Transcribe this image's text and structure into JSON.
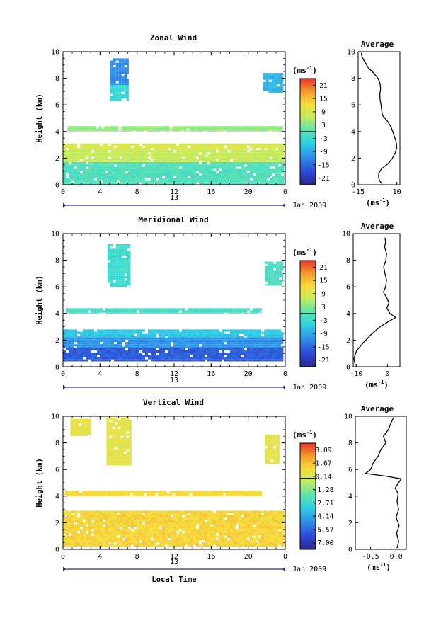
{
  "chart_data": [
    {
      "type": "heatmap",
      "title": "Zonal Wind",
      "ylabel": "Height (km)",
      "xticks": [
        "0",
        "4",
        "8",
        "12",
        "16",
        "20",
        "0"
      ],
      "yticks": [
        "0",
        "2",
        "4",
        "6",
        "8",
        "10"
      ],
      "xlim": [
        0,
        24
      ],
      "ylim": [
        0,
        10
      ],
      "date_label": "13",
      "month_label": "Jan 2009",
      "colorbar": {
        "unit_base": "(ms",
        "unit_exp": "-1",
        "unit_close": ")",
        "ticks": [
          "21",
          "15",
          "9",
          "3",
          "-3",
          "-9",
          "-15",
          "-21"
        ],
        "range": [
          -24,
          24
        ],
        "zero_line": 0
      },
      "fields": [
        {
          "x": [
            5.1,
            7.1
          ],
          "y": [
            7.5,
            9.5
          ],
          "value": -12
        },
        {
          "x": [
            5.1,
            7.1
          ],
          "y": [
            6.3,
            7.5
          ],
          "value": -4
        },
        {
          "x": [
            21.6,
            23.8
          ],
          "y": [
            6.9,
            8.4
          ],
          "value": -8
        },
        {
          "x": [
            0.5,
            23.8
          ],
          "y": [
            4.0,
            4.4
          ],
          "value": 4
        },
        {
          "x": [
            0,
            23.9
          ],
          "y": [
            2.6,
            3.1
          ],
          "value": 9
        },
        {
          "x": [
            0,
            23.9
          ],
          "y": [
            1.7,
            2.6
          ],
          "value": 7
        },
        {
          "x": [
            0,
            23.9
          ],
          "y": [
            0,
            1.7
          ],
          "value": -1
        }
      ],
      "average": {
        "title": "Average",
        "xlabel_base": "(ms",
        "xlabel_exp": "-1",
        "xlabel_close": ")",
        "xticks": [
          "-15",
          "10"
        ],
        "xlim": [
          -15,
          12
        ],
        "ylim": [
          0,
          10
        ],
        "yticks": [
          "0",
          "2",
          "4",
          "6",
          "8",
          "10"
        ],
        "profile": [
          [
            0.3,
            0.1
          ],
          [
            -1.2,
            0.3
          ],
          [
            -1.8,
            0.6
          ],
          [
            -1.6,
            0.9
          ],
          [
            0.2,
            1.2
          ],
          [
            4.5,
            1.6
          ],
          [
            7.2,
            2.0
          ],
          [
            9.0,
            2.4
          ],
          [
            10.0,
            2.8
          ],
          [
            9.6,
            3.2
          ],
          [
            8.5,
            3.6
          ],
          [
            7.4,
            4.0
          ],
          [
            6.0,
            4.4
          ],
          [
            3.8,
            4.8
          ],
          [
            0.8,
            5.2
          ],
          [
            0.2,
            5.6
          ],
          [
            -0.2,
            6.0
          ],
          [
            -0.8,
            6.4
          ],
          [
            -1.0,
            6.8
          ],
          [
            -0.5,
            7.2
          ],
          [
            -0.8,
            7.6
          ],
          [
            -2.2,
            8.0
          ],
          [
            -5.0,
            8.4
          ],
          [
            -8.5,
            8.8
          ],
          [
            -10.5,
            9.2
          ],
          [
            -12.5,
            9.6
          ],
          [
            -13.0,
            9.9
          ]
        ]
      }
    },
    {
      "type": "heatmap",
      "title": "Meridional Wind",
      "ylabel": "Height (km)",
      "xticks": [
        "0",
        "4",
        "8",
        "12",
        "16",
        "20",
        "0"
      ],
      "yticks": [
        "0",
        "2",
        "4",
        "6",
        "8",
        "10"
      ],
      "xlim": [
        0,
        24
      ],
      "ylim": [
        0,
        10
      ],
      "date_label": "13",
      "month_label": "Jan 2009",
      "colorbar": {
        "unit_base": "(ms",
        "unit_exp": "-1",
        "unit_close": ")",
        "ticks": [
          "21",
          "15",
          "9",
          "3",
          "-3",
          "-9",
          "-15",
          "-21"
        ],
        "range": [
          -24,
          24
        ],
        "zero_line": 0
      },
      "fields": [
        {
          "x": [
            4.8,
            7.3
          ],
          "y": [
            6.0,
            9.2
          ],
          "value": -3
        },
        {
          "x": [
            21.8,
            23.8
          ],
          "y": [
            6.1,
            7.9
          ],
          "value": -2
        },
        {
          "x": [
            0.3,
            21.5
          ],
          "y": [
            4.0,
            4.4
          ],
          "value": -2
        },
        {
          "x": [
            0,
            23.8
          ],
          "y": [
            2.2,
            2.8
          ],
          "value": -6
        },
        {
          "x": [
            0,
            23.8
          ],
          "y": [
            1.4,
            2.2
          ],
          "value": -11
        },
        {
          "x": [
            0,
            23.8
          ],
          "y": [
            0.4,
            1.4
          ],
          "value": -16
        }
      ],
      "average": {
        "title": "Average",
        "xlabel_base": "(ms",
        "xlabel_exp": "-1",
        "xlabel_close": ")",
        "xticks": [
          "-10",
          "0"
        ],
        "xlim": [
          -11,
          4
        ],
        "ylim": [
          0,
          10
        ],
        "yticks": [
          "0",
          "2",
          "4",
          "6",
          "8",
          "10"
        ],
        "profile": [
          [
            -10.3,
            0.1
          ],
          [
            -10.8,
            0.6
          ],
          [
            -9.9,
            1.2
          ],
          [
            -7.8,
            1.8
          ],
          [
            -5.3,
            2.4
          ],
          [
            -2.4,
            3.0
          ],
          [
            0.4,
            3.4
          ],
          [
            2.6,
            3.7
          ],
          [
            0.8,
            4.0
          ],
          [
            -0.2,
            4.4
          ],
          [
            0.5,
            4.8
          ],
          [
            -0.3,
            5.2
          ],
          [
            -1.3,
            5.6
          ],
          [
            -0.6,
            6.0
          ],
          [
            -0.3,
            6.5
          ],
          [
            -0.8,
            7.0
          ],
          [
            -1.2,
            7.5
          ],
          [
            -0.5,
            8.0
          ],
          [
            -0.3,
            8.5
          ],
          [
            -0.9,
            9.0
          ],
          [
            -0.6,
            9.4
          ],
          [
            -0.8,
            9.7
          ]
        ]
      }
    },
    {
      "type": "heatmap",
      "title": "Vertical Wind",
      "ylabel": "Height (km)",
      "xlabel": "Local Time",
      "xticks": [
        "0",
        "4",
        "8",
        "12",
        "16",
        "20",
        "0"
      ],
      "yticks": [
        "0",
        "2",
        "4",
        "6",
        "8",
        "10"
      ],
      "xlim": [
        0,
        24
      ],
      "ylim": [
        0,
        10
      ],
      "date_label": "13",
      "month_label": "Jan 2009",
      "colorbar": {
        "unit_base": "(ms",
        "unit_exp": "-1",
        "unit_close": ")",
        "ticks": [
          "3.09",
          "1.67",
          "0.14",
          "-1.28",
          "-2.71",
          "-4.14",
          "-5.57",
          "-7.00"
        ],
        "range": [
          -7.7,
          3.8
        ],
        "zero_line": 0
      },
      "fields": [
        {
          "x": [
            4.7,
            7.4
          ],
          "y": [
            6.3,
            9.9
          ],
          "value": 0.5
        },
        {
          "x": [
            0.8,
            3.0
          ],
          "y": [
            8.5,
            9.8
          ],
          "value": 0.6
        },
        {
          "x": [
            21.8,
            23.4
          ],
          "y": [
            6.4,
            8.6
          ],
          "value": 0.5
        },
        {
          "x": [
            0.2,
            21.5
          ],
          "y": [
            4.0,
            4.4
          ],
          "value": 1.0
        },
        {
          "x": [
            0,
            23.9
          ],
          "y": [
            0.2,
            2.9
          ],
          "value": 1.2
        }
      ],
      "average": {
        "title": "Average",
        "xlabel_base": "(ms",
        "xlabel_exp": "-1",
        "xlabel_close": ")",
        "xticks": [
          "-0.5",
          "0.0"
        ],
        "xlim": [
          -0.8,
          0.2
        ],
        "ylim": [
          0,
          10
        ],
        "yticks": [
          "0",
          "2",
          "4",
          "6",
          "8",
          "10"
        ],
        "profile": [
          [
            0.02,
            0.1
          ],
          [
            0.05,
            0.6
          ],
          [
            0.01,
            1.2
          ],
          [
            0.06,
            1.8
          ],
          [
            0.0,
            2.4
          ],
          [
            0.05,
            3.0
          ],
          [
            0.02,
            3.6
          ],
          [
            0.04,
            4.2
          ],
          [
            -0.02,
            4.6
          ],
          [
            0.05,
            5.0
          ],
          [
            0.1,
            5.3
          ],
          [
            -0.2,
            5.5
          ],
          [
            -0.6,
            5.7
          ],
          [
            -0.5,
            6.0
          ],
          [
            -0.45,
            6.5
          ],
          [
            -0.35,
            7.0
          ],
          [
            -0.3,
            7.5
          ],
          [
            -0.2,
            8.0
          ],
          [
            -0.25,
            8.5
          ],
          [
            -0.15,
            9.0
          ],
          [
            -0.1,
            9.5
          ],
          [
            -0.05,
            9.9
          ]
        ]
      }
    }
  ]
}
